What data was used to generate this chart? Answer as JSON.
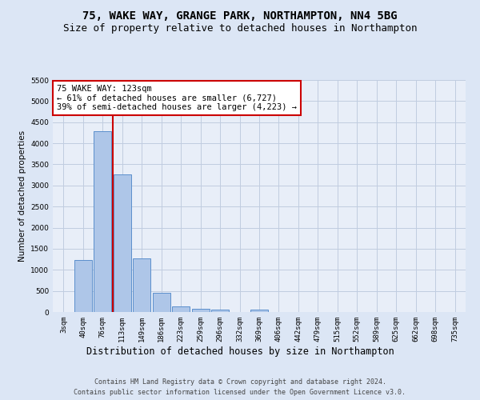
{
  "title1": "75, WAKE WAY, GRANGE PARK, NORTHAMPTON, NN4 5BG",
  "title2": "Size of property relative to detached houses in Northampton",
  "xlabel": "Distribution of detached houses by size in Northampton",
  "ylabel": "Number of detached properties",
  "categories": [
    "3sqm",
    "40sqm",
    "76sqm",
    "113sqm",
    "149sqm",
    "186sqm",
    "223sqm",
    "259sqm",
    "296sqm",
    "332sqm",
    "369sqm",
    "406sqm",
    "442sqm",
    "479sqm",
    "515sqm",
    "552sqm",
    "589sqm",
    "625sqm",
    "662sqm",
    "698sqm",
    "735sqm"
  ],
  "values": [
    0,
    1230,
    4280,
    3270,
    1270,
    450,
    130,
    80,
    55,
    0,
    55,
    0,
    0,
    0,
    0,
    0,
    0,
    0,
    0,
    0,
    0
  ],
  "bar_color": "#aec6e8",
  "bar_edge_color": "#5b8fcc",
  "vline_x": 2.5,
  "vline_color": "#cc0000",
  "annotation_text": "75 WAKE WAY: 123sqm\n← 61% of detached houses are smaller (6,727)\n39% of semi-detached houses are larger (4,223) →",
  "annotation_box_facecolor": "#ffffff",
  "annotation_box_edgecolor": "#cc0000",
  "footer1": "Contains HM Land Registry data © Crown copyright and database right 2024.",
  "footer2": "Contains public sector information licensed under the Open Government Licence v3.0.",
  "ylim_max": 5500,
  "yticks": [
    0,
    500,
    1000,
    1500,
    2000,
    2500,
    3000,
    3500,
    4000,
    4500,
    5000,
    5500
  ],
  "fig_bg_color": "#dce6f5",
  "plot_bg_color": "#e8eef8",
  "grid_color": "#c0cce0",
  "title1_fontsize": 10,
  "title2_fontsize": 9,
  "xlabel_fontsize": 8.5,
  "ylabel_fontsize": 7.5,
  "tick_fontsize": 6.5,
  "annotation_fontsize": 7.5,
  "footer_fontsize": 6
}
